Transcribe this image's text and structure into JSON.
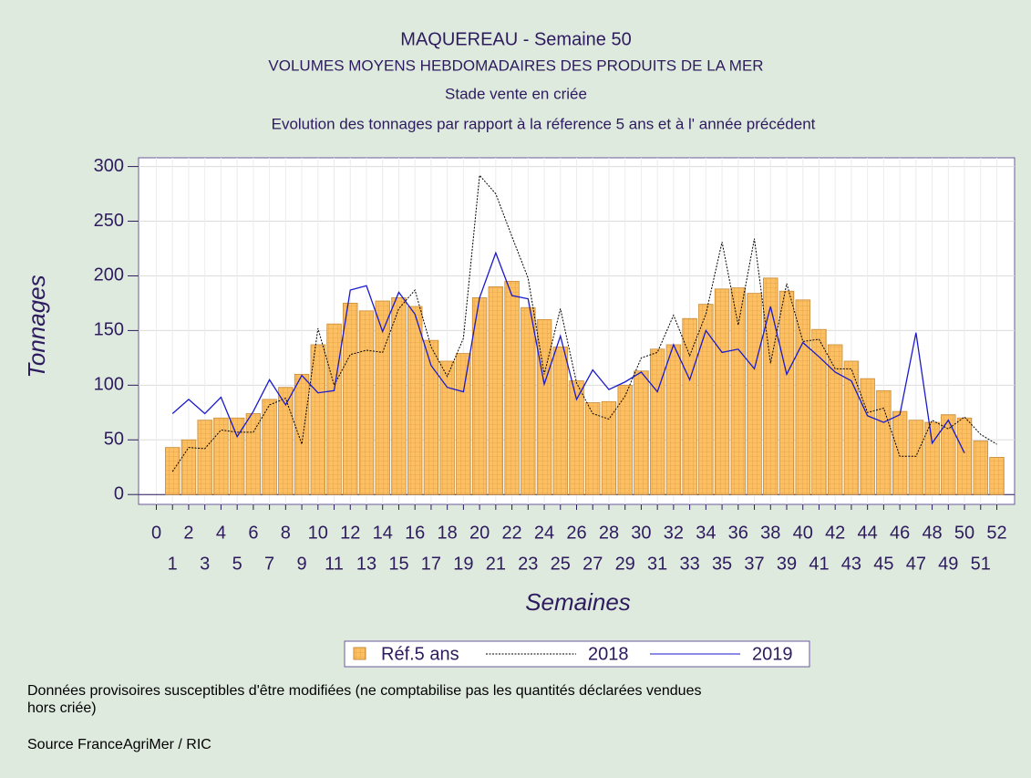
{
  "chart_data": {
    "type": "bar_line",
    "title": "MAQUEREAU - Semaine 50",
    "subtitle": [
      "VOLUMES MOYENS HEBDOMADAIRES DES PRODUITS DE LA MER",
      "Stade vente en criée",
      "Evolution des tonnages par rapport à la réference 5 ans et à l' année précédent"
    ],
    "x_label": "Semaines",
    "y_label": "Tonnages",
    "x": [
      1,
      2,
      3,
      4,
      5,
      6,
      7,
      8,
      9,
      10,
      11,
      12,
      13,
      14,
      15,
      16,
      17,
      18,
      19,
      20,
      21,
      22,
      23,
      24,
      25,
      26,
      27,
      28,
      29,
      30,
      31,
      32,
      33,
      34,
      35,
      36,
      37,
      38,
      39,
      40,
      41,
      42,
      43,
      44,
      45,
      46,
      47,
      48,
      49,
      50,
      51,
      52
    ],
    "series": [
      {
        "name": "Réf.5 ans",
        "kind": "bar",
        "color": "#fcbf62",
        "values": [
          43,
          50,
          68,
          70,
          70,
          74,
          87,
          98,
          110,
          137,
          156,
          175,
          168,
          177,
          180,
          172,
          141,
          122,
          129,
          180,
          190,
          195,
          171,
          160,
          135,
          104,
          84,
          85,
          100,
          113,
          133,
          137,
          161,
          174,
          188,
          189,
          184,
          198,
          186,
          178,
          151,
          137,
          122,
          106,
          95,
          76,
          68,
          66,
          73,
          70,
          49,
          34
        ]
      },
      {
        "name": "2018",
        "kind": "line",
        "dash": "dotted",
        "color": "#000000",
        "values": [
          21,
          43,
          42,
          59,
          57,
          57,
          82,
          88,
          46,
          152,
          100,
          128,
          132,
          130,
          170,
          187,
          135,
          108,
          143,
          292,
          275,
          236,
          198,
          110,
          170,
          102,
          74,
          69,
          90,
          125,
          130,
          164,
          127,
          165,
          231,
          155,
          234,
          120,
          193,
          140,
          142,
          115,
          115,
          75,
          79,
          35,
          35,
          68,
          60,
          71,
          55,
          46
        ]
      },
      {
        "name": "2019",
        "kind": "line",
        "dash": "solid",
        "color": "#1a1acc",
        "values": [
          74,
          87,
          74,
          89,
          53,
          76,
          105,
          82,
          109,
          93,
          95,
          187,
          191,
          149,
          185,
          165,
          118,
          98,
          94,
          180,
          221,
          182,
          179,
          101,
          145,
          87,
          114,
          96,
          103,
          112,
          94,
          137,
          105,
          150,
          130,
          133,
          115,
          172,
          110,
          139,
          126,
          112,
          104,
          72,
          66,
          73,
          148,
          47,
          68,
          38,
          null,
          null
        ]
      }
    ],
    "xlim": [
      -1.1,
      53.1
    ],
    "xticks": [
      0,
      1,
      2,
      3,
      4,
      5,
      6,
      7,
      8,
      9,
      10,
      11,
      12,
      13,
      14,
      15,
      16,
      17,
      18,
      19,
      20,
      21,
      22,
      23,
      24,
      25,
      26,
      27,
      28,
      29,
      30,
      31,
      32,
      33,
      34,
      35,
      36,
      37,
      38,
      39,
      40,
      41,
      42,
      43,
      44,
      45,
      46,
      47,
      48,
      49,
      50,
      51,
      52
    ],
    "ylim": [
      -9,
      308
    ],
    "yticks": [
      0,
      50,
      100,
      150,
      200,
      250,
      300
    ],
    "grid": true,
    "legend": "bottom",
    "notes": [
      "Données provisoires susceptibles d'être modifiées (ne comptabilise pas les quantités déclarées vendues",
      "hors criée)",
      "Source FranceAgriMer / RIC"
    ]
  }
}
